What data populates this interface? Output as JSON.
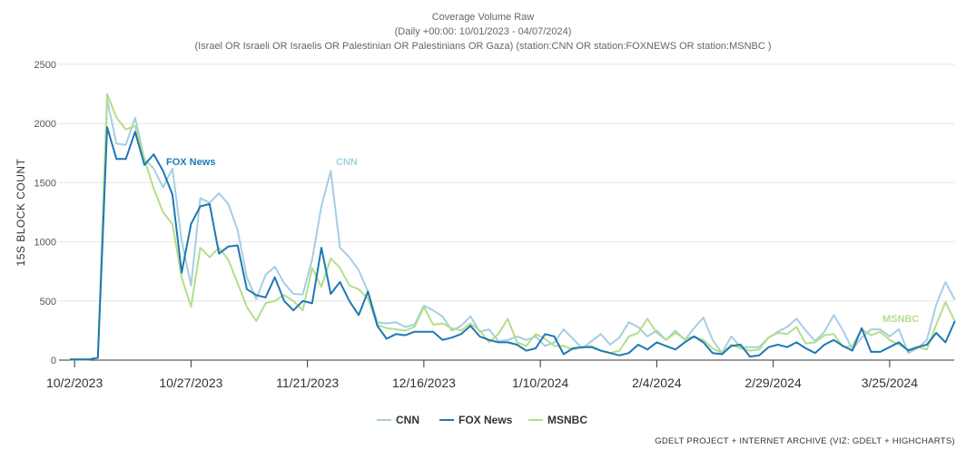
{
  "chart_data": {
    "type": "line",
    "title": "Coverage Volume Raw",
    "subtitle": "(Daily +00:00: 10/01/2023 - 04/07/2024)",
    "query": "(Israel OR Israeli OR Israelis OR Palestinian OR Palestinians OR Gaza) (station:CNN OR station:FOXNEWS OR station:MSNBC )",
    "xlabel": "",
    "ylabel": "15s Block Count",
    "ylim": [
      0,
      2500
    ],
    "yticks": [
      "0",
      "500",
      "1000",
      "1500",
      "2000",
      "2500"
    ],
    "x_start": "10/1/2023",
    "interval_days": 2,
    "xticks": [
      {
        "label": "10/2/2023",
        "day": 1
      },
      {
        "label": "10/27/2023",
        "day": 26
      },
      {
        "label": "11/21/2023",
        "day": 51
      },
      {
        "label": "12/16/2023",
        "day": 76
      },
      {
        "label": "1/10/2024",
        "day": 101
      },
      {
        "label": "2/4/2024",
        "day": 126
      },
      {
        "label": "2/29/2024",
        "day": 151
      },
      {
        "label": "3/25/2024",
        "day": 176
      }
    ],
    "grid": true,
    "legend_position": "bottom-center",
    "series": [
      {
        "name": "CNN",
        "color": "#a6cee3",
        "inline_label": "CNN",
        "values": [
          10,
          5,
          5,
          20,
          2200,
          1830,
          1820,
          2050,
          1700,
          1620,
          1460,
          1620,
          1010,
          630,
          1370,
          1330,
          1410,
          1320,
          1100,
          700,
          515,
          720,
          790,
          650,
          560,
          555,
          850,
          1300,
          1600,
          950,
          870,
          760,
          580,
          320,
          310,
          320,
          280,
          300,
          460,
          420,
          370,
          250,
          290,
          370,
          240,
          260,
          160,
          170,
          200,
          170,
          200,
          120,
          150,
          260,
          180,
          100,
          160,
          220,
          130,
          190,
          320,
          280,
          200,
          250,
          170,
          250,
          170,
          270,
          360,
          170,
          60,
          200,
          110,
          110,
          110,
          190,
          240,
          280,
          350,
          250,
          160,
          240,
          380,
          250,
          90,
          190,
          260,
          260,
          200,
          260,
          60,
          100,
          170,
          470,
          660,
          510
        ]
      },
      {
        "name": "FOX News",
        "color": "#1f78b4",
        "inline_label": "FOX News",
        "values": [
          5,
          5,
          5,
          20,
          1970,
          1700,
          1700,
          1930,
          1650,
          1740,
          1600,
          1400,
          740,
          1150,
          1300,
          1320,
          900,
          960,
          970,
          600,
          550,
          530,
          700,
          500,
          420,
          500,
          480,
          950,
          560,
          660,
          500,
          380,
          580,
          290,
          180,
          220,
          210,
          240,
          240,
          240,
          170,
          190,
          220,
          290,
          200,
          170,
          150,
          150,
          130,
          80,
          100,
          220,
          200,
          50,
          100,
          110,
          110,
          80,
          60,
          40,
          60,
          130,
          90,
          150,
          120,
          90,
          150,
          200,
          150,
          60,
          50,
          120,
          130,
          30,
          40,
          110,
          130,
          110,
          150,
          100,
          60,
          130,
          170,
          120,
          80,
          270,
          70,
          70,
          110,
          150,
          80,
          110,
          130,
          230,
          150,
          330
        ]
      },
      {
        "name": "MSNBC",
        "color": "#b2df8a",
        "inline_label": "MSNBC",
        "values": [
          5,
          5,
          5,
          20,
          2250,
          2050,
          1950,
          1980,
          1700,
          1450,
          1250,
          1150,
          700,
          450,
          950,
          870,
          950,
          850,
          650,
          450,
          330,
          480,
          500,
          550,
          500,
          420,
          780,
          620,
          860,
          780,
          630,
          600,
          520,
          300,
          270,
          260,
          250,
          280,
          450,
          300,
          310,
          270,
          250,
          310,
          250,
          150,
          220,
          350,
          150,
          120,
          220,
          180,
          120,
          120,
          90,
          110,
          120,
          80,
          60,
          80,
          200,
          230,
          350,
          230,
          170,
          230,
          180,
          200,
          170,
          100,
          60,
          130,
          100,
          80,
          90,
          190,
          230,
          220,
          280,
          140,
          150,
          210,
          220,
          110,
          120,
          260,
          210,
          240,
          170,
          130,
          90,
          110,
          90,
          300,
          490,
          330
        ]
      }
    ]
  },
  "legend": [
    "CNN",
    "FOX News",
    "MSNBC"
  ],
  "credit": "GDELT Project + Internet Archive (Viz: GDELT + Highcharts)"
}
